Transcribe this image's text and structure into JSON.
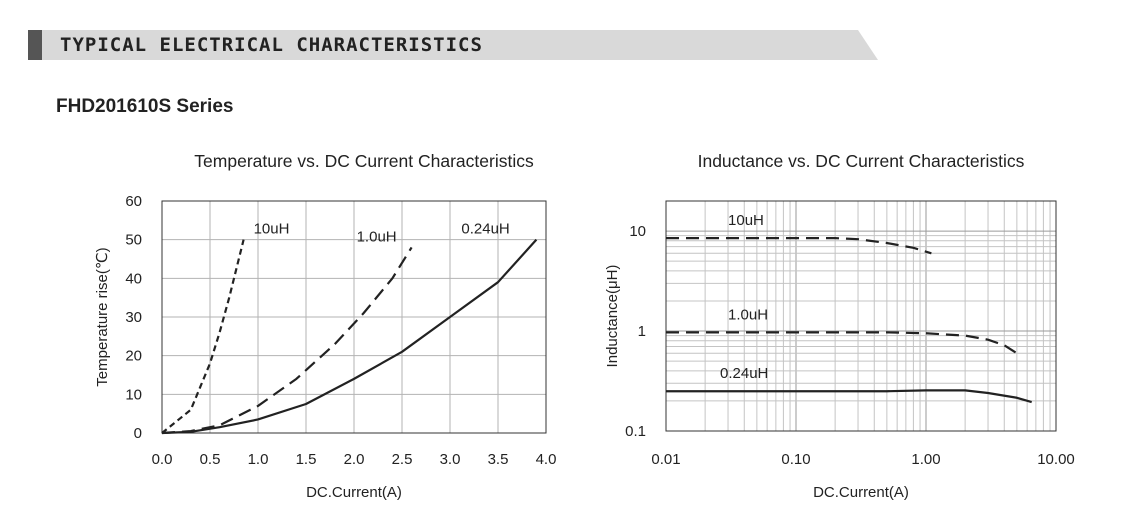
{
  "header": {
    "banner_title": "TYPICAL ELECTRICAL CHARACTERISTICS",
    "series_title": "FHD201610S Series"
  },
  "chart_data": [
    {
      "type": "line",
      "title": "Temperature vs. DC Current Characteristics",
      "xlabel": "DC.Current(A)",
      "ylabel": "Temperature rise(℃)",
      "xlim": [
        0,
        4
      ],
      "ylim": [
        0,
        60
      ],
      "xticks": [
        "0.0",
        "0.5",
        "1.0",
        "1.5",
        "2.0",
        "2.5",
        "3.0",
        "3.5",
        "4.0"
      ],
      "yticks": [
        "0",
        "10",
        "20",
        "30",
        "40",
        "50",
        "60"
      ],
      "grid": true,
      "series": [
        {
          "name": "10uH",
          "style": "short-dash",
          "x": [
            0.0,
            0.15,
            0.3,
            0.4,
            0.5,
            0.6,
            0.7,
            0.8,
            0.85
          ],
          "y": [
            0,
            3,
            6,
            12,
            18,
            26,
            35,
            45,
            50
          ]
        },
        {
          "name": "1.0uH",
          "style": "long-dash",
          "x": [
            0.0,
            0.3,
            0.6,
            1.0,
            1.4,
            1.8,
            2.1,
            2.4,
            2.6
          ],
          "y": [
            0,
            0.5,
            2,
            7,
            14,
            23,
            31,
            40,
            48
          ]
        },
        {
          "name": "0.24uH",
          "style": "solid",
          "x": [
            0.0,
            0.3,
            0.6,
            1.0,
            1.5,
            2.0,
            2.5,
            3.0,
            3.5,
            3.9
          ],
          "y": [
            0,
            0.3,
            1.5,
            3.5,
            7.5,
            14,
            21,
            30,
            39,
            50
          ]
        }
      ]
    },
    {
      "type": "line",
      "title": "Inductance vs. DC Current Characteristics",
      "xlabel": "DC.Current(A)",
      "ylabel": "Inductance(μH)",
      "xscale": "log",
      "yscale": "log",
      "xlim": [
        0.01,
        10
      ],
      "ylim": [
        0.1,
        20
      ],
      "xticks": [
        "0.01",
        "0.10",
        "1.00",
        "10.00"
      ],
      "yticks": [
        "0.1",
        "1",
        "10"
      ],
      "grid": true,
      "series": [
        {
          "name": "10uH",
          "style": "long-dash",
          "x": [
            0.01,
            0.05,
            0.2,
            0.3,
            0.5,
            0.8,
            1.1
          ],
          "y": [
            8.5,
            8.5,
            8.5,
            8.3,
            7.6,
            6.8,
            6.0
          ]
        },
        {
          "name": "1.0uH",
          "style": "long-dash",
          "x": [
            0.01,
            0.1,
            0.5,
            1.0,
            2.0,
            3.0,
            4.0,
            5.0
          ],
          "y": [
            0.97,
            0.97,
            0.97,
            0.95,
            0.9,
            0.82,
            0.72,
            0.6
          ]
        },
        {
          "name": "0.24uH",
          "style": "solid",
          "x": [
            0.01,
            0.1,
            0.5,
            1.0,
            2.0,
            3.0,
            5.0,
            6.5
          ],
          "y": [
            0.25,
            0.25,
            0.25,
            0.255,
            0.255,
            0.24,
            0.215,
            0.195
          ]
        }
      ]
    }
  ]
}
